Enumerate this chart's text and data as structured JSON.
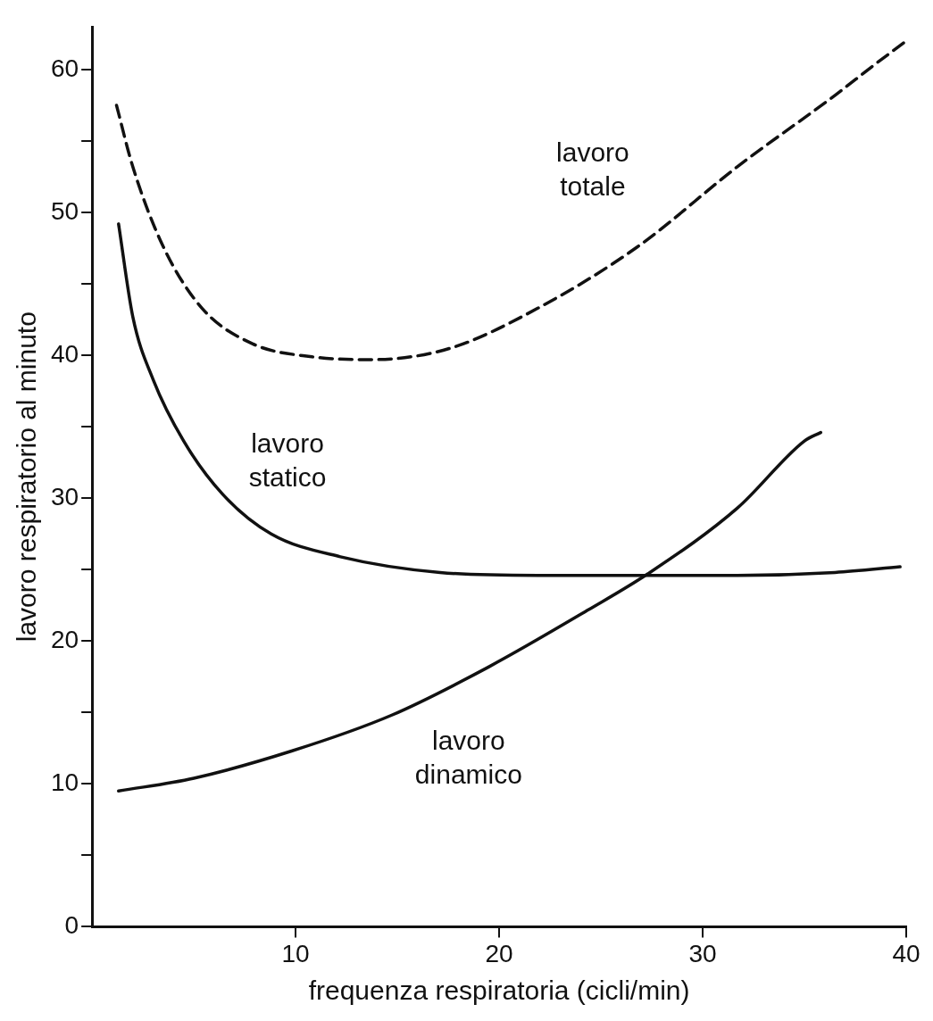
{
  "chart_data": {
    "type": "line",
    "xlabel": "frequenza respiratoria (cicli/min)",
    "ylabel": "lavoro respiratorio al minuto",
    "xlim": [
      0,
      40
    ],
    "xticks": [
      10,
      20,
      30,
      40
    ],
    "ylim": [
      0,
      63
    ],
    "yticks": [
      0,
      {
        "value": 5,
        "label": null
      },
      10,
      {
        "value": 15,
        "label": null
      },
      20,
      {
        "value": 25,
        "label": null
      },
      30,
      {
        "value": 35,
        "label": null
      },
      40,
      {
        "value": 45,
        "label": null
      },
      50,
      {
        "value": 55,
        "label": null
      },
      60
    ],
    "grid": false,
    "legend": false,
    "marker": "none",
    "series": [
      {
        "name": "lavoro totale",
        "color": "#111111",
        "line_style": "dashed",
        "x": [
          1.2,
          2.0,
          3.5,
          5.4,
          7.9,
          10.8,
          13.7,
          17.6,
          21.9,
          26.8,
          31.7,
          36.5,
          38.4,
          39.9
        ],
        "values": [
          57.5,
          53.2,
          47.6,
          43.3,
          40.8,
          39.9,
          39.7,
          40.5,
          43.3,
          47.6,
          53.2,
          58.2,
          60.3,
          61.9
        ]
      },
      {
        "name": "lavoro statico",
        "color": "#111111",
        "line_style": "solid",
        "x": [
          1.3,
          2.0,
          3.0,
          4.5,
          6.4,
          8.8,
          12.2,
          17.1,
          21.9,
          27.3,
          31.7,
          36.5,
          39.7
        ],
        "values": [
          49.2,
          42.7,
          38.3,
          34.0,
          30.3,
          27.5,
          25.9,
          24.8,
          24.6,
          24.6,
          24.6,
          24.8,
          25.2
        ]
      },
      {
        "name": "lavoro dinamico",
        "color": "#111111",
        "line_style": "solid",
        "x": [
          1.3,
          5.0,
          9.8,
          14.7,
          19.5,
          24.4,
          27.3,
          31.7,
          35.0,
          35.8
        ],
        "values": [
          9.5,
          10.4,
          12.3,
          14.8,
          18.2,
          22.2,
          24.7,
          29.3,
          34.0,
          34.6
        ]
      }
    ]
  }
}
